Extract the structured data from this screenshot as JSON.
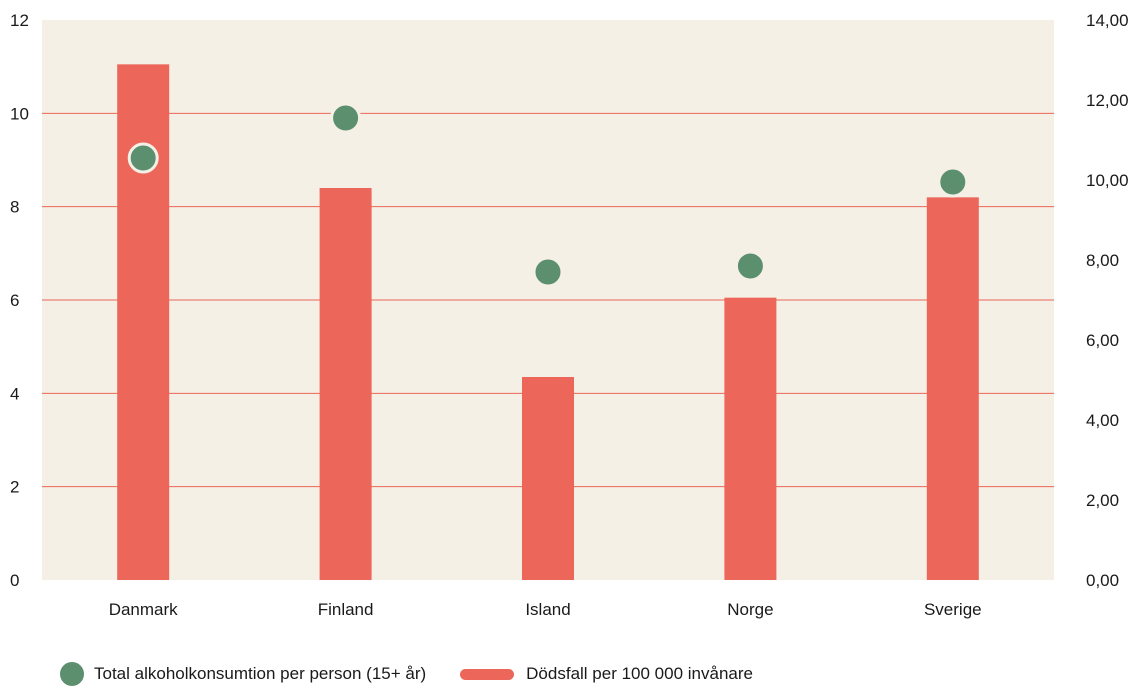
{
  "colors": {
    "plot_bg": "#f5f0e6",
    "bar": "#ec6659",
    "dot": "#5b8f6e",
    "grid": "#ec6659",
    "text": "#1a1a1a"
  },
  "chart_data": {
    "type": "bar",
    "categories": [
      "Danmark",
      "Finland",
      "Island",
      "Norge",
      "Sverige"
    ],
    "series": [
      {
        "name": "Dödsfall per 100 000 invånare",
        "type": "bar",
        "axis": "left",
        "values": [
          11.05,
          8.4,
          4.35,
          6.05,
          8.2
        ]
      },
      {
        "name": "Total alkoholkonsumtion per person (15+ år)",
        "type": "scatter",
        "axis": "right",
        "values": [
          10.55,
          11.55,
          7.7,
          7.85,
          9.95
        ]
      }
    ],
    "y_left": {
      "ylim": [
        0,
        12
      ],
      "ticks": [
        "0",
        "2",
        "4",
        "6",
        "8",
        "10",
        "12"
      ]
    },
    "y_right": {
      "ylim": [
        0,
        14
      ],
      "ticks": [
        "0,00",
        "2,00",
        "4,00",
        "6,00",
        "8,00",
        "10,00",
        "12,00",
        "14,00"
      ]
    },
    "grid": true,
    "legend_position": "bottom-left"
  },
  "legend": {
    "dot_label": "Total alkoholkonsumtion per person (15+ år)",
    "bar_label": "Dödsfall per 100 000 invånare"
  }
}
